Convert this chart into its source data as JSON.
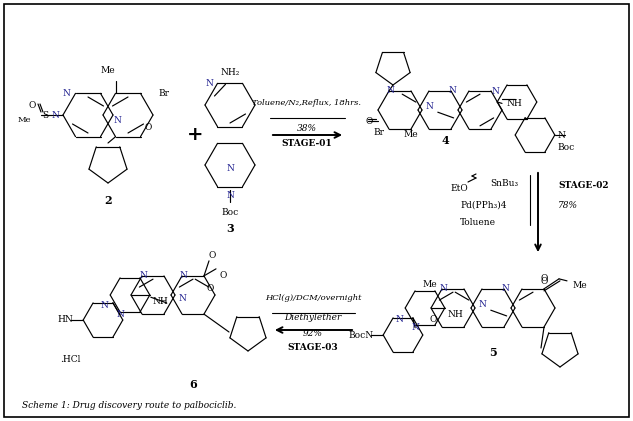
{
  "fig_width": 6.33,
  "fig_height": 4.21,
  "dpi": 100,
  "background": "#ffffff",
  "scheme_caption": "Scheme 1: Drug discovery route to palbociclib.",
  "stage1_reagents": [
    "Toluene/N₂,Reflux, 18hrs.",
    "38%",
    "STAGE-01"
  ],
  "stage2_reagents": [
    "EtO",
    "SnBu₃",
    "Pd(PPh₃)4",
    "Toluene",
    "STAGE-02",
    "78%"
  ],
  "stage3_reagents": [
    "HCl(g)/DCM/overnight",
    "Diethylether",
    "92%",
    "STAGE-03"
  ]
}
